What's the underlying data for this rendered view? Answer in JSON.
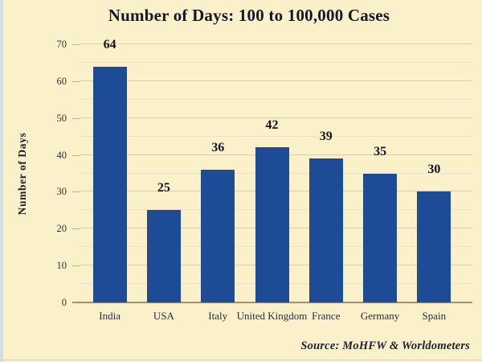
{
  "chart_data": {
    "type": "bar",
    "title": "Number of Days: 100 to 100,000 Cases",
    "categories": [
      "India",
      "USA",
      "Italy",
      "United Kingdom",
      "France",
      "Germany",
      "Spain"
    ],
    "values": [
      64,
      25,
      36,
      42,
      39,
      35,
      30
    ],
    "xlabel": "",
    "ylabel": "Number of Days",
    "ylim": [
      0,
      70
    ],
    "ytick_step": 10,
    "minor_grid_step": 5,
    "yticks": [
      0,
      10,
      20,
      30,
      40,
      50,
      60,
      70
    ],
    "grid": true,
    "legend": false,
    "value_labels_shown": true,
    "colors": {
      "background": "#FAF0C9",
      "bar": "#1E4B96",
      "grid_major": "#D8CDB2",
      "grid_minor": "#EAE2CC",
      "axis_line": "#9E9279",
      "title_text": "#17172B",
      "tick_text": "#32323E",
      "category_text": "#2B2B3C",
      "value_text": "#14141F",
      "source_text": "#1C2237",
      "left_edge": "#D6DCE4",
      "bottom_edge": "#D8CEB2"
    }
  },
  "footer": {
    "source": "Source: MoHFW & Worldometers"
  }
}
